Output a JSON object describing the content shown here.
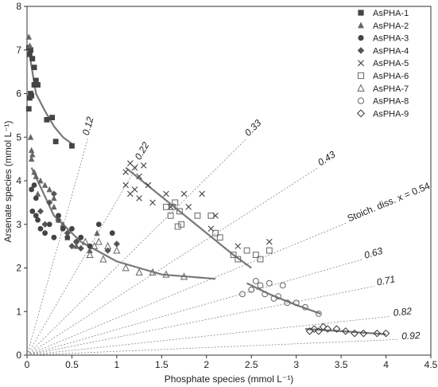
{
  "chart_data": {
    "type": "scatter",
    "xlabel": "Phosphate species (mmol L⁻¹)",
    "ylabel": "Arsenate species (mmol L⁻¹)",
    "xlim": [
      0,
      4.5
    ],
    "ylim": [
      0,
      8
    ],
    "xticks": [
      "0",
      "0.5",
      "1",
      "1.5",
      "2",
      "2.5",
      "3",
      "3.5",
      "4",
      "4.5"
    ],
    "yticks": [
      "0",
      "1",
      "2",
      "3",
      "4",
      "5",
      "6",
      "7",
      "8"
    ],
    "grid": false,
    "legend_position": "top-right",
    "reference_lines": {
      "labels": [
        "0.12",
        "0.22",
        "0.33",
        "0.43",
        "Stoich. diss. x = 0.54",
        "0.63",
        "0.71",
        "0.82",
        "0.92"
      ],
      "x_fraction": [
        0.12,
        0.22,
        0.33,
        0.43,
        0.54,
        0.63,
        0.71,
        0.82,
        0.92
      ]
    },
    "series": [
      {
        "name": "AsPHA-1",
        "marker": "square-filled",
        "x": [
          0.02,
          0.03,
          0.05,
          0.02,
          0.04,
          0.06,
          0.08,
          0.1,
          0.12,
          0.22,
          0.28,
          0.32,
          0.5,
          0.04,
          0.08,
          0.03
        ],
        "y": [
          5.65,
          5.9,
          5.95,
          7.05,
          7.0,
          6.8,
          6.6,
          6.3,
          6.2,
          5.4,
          5.45,
          4.9,
          4.8,
          6.0,
          6.2,
          6.9
        ],
        "trend": {
          "x": [
            0.02,
            0.1,
            0.2,
            0.3,
            0.4,
            0.5
          ],
          "y": [
            7.0,
            6.0,
            5.6,
            5.25,
            5.0,
            4.85
          ]
        }
      },
      {
        "name": "AsPHA-2",
        "marker": "triangle-filled",
        "x": [
          0.02,
          0.03,
          0.04,
          0.05,
          0.06,
          0.1,
          0.15,
          0.2,
          0.25,
          0.3,
          0.3,
          0.35,
          0.4,
          0.45,
          0.55,
          0.7,
          0.78,
          0.05,
          0.08,
          0.12
        ],
        "y": [
          7.3,
          7.1,
          5.0,
          4.7,
          4.6,
          4.1,
          4.0,
          3.9,
          3.8,
          3.6,
          3.4,
          3.1,
          3.0,
          2.7,
          2.5,
          2.4,
          2.8,
          4.5,
          4.2,
          3.7
        ]
      },
      {
        "name": "AsPHA-3",
        "marker": "circle-filled",
        "x": [
          0.05,
          0.06,
          0.08,
          0.1,
          0.1,
          0.12,
          0.15,
          0.2,
          0.25,
          0.3,
          0.35,
          0.4,
          0.45,
          0.5,
          0.55,
          0.6,
          0.7,
          0.8,
          0.95
        ],
        "y": [
          3.8,
          3.3,
          3.9,
          3.6,
          3.2,
          3.1,
          2.9,
          2.8,
          3.0,
          2.7,
          3.2,
          2.9,
          2.7,
          2.9,
          2.6,
          2.7,
          2.5,
          3.0,
          2.8
        ]
      },
      {
        "name": "AsPHA-4",
        "marker": "diamond-filled",
        "x": [
          0.15,
          0.2,
          0.25,
          0.3,
          0.35,
          0.45,
          0.5,
          0.55,
          0.6,
          0.9,
          1.0
        ],
        "y": [
          3.3,
          3.0,
          3.5,
          3.7,
          3.1,
          2.8,
          2.5,
          2.6,
          2.45,
          2.4,
          2.55
        ]
      },
      {
        "name": "AsPHA-5",
        "marker": "x",
        "x": [
          1.1,
          1.15,
          1.2,
          1.25,
          1.3,
          1.35,
          1.1,
          1.2,
          1.15,
          1.25,
          1.4,
          1.55,
          1.6,
          1.75,
          1.8,
          1.95,
          2.05,
          2.1,
          2.35,
          2.7
        ],
        "y": [
          4.2,
          4.4,
          4.3,
          4.1,
          4.35,
          3.9,
          3.9,
          3.8,
          3.7,
          3.6,
          3.5,
          3.7,
          3.4,
          3.7,
          3.4,
          3.7,
          2.9,
          3.2,
          2.5,
          2.6
        ],
        "trend": {
          "x": [
            1.1,
            1.4,
            1.7,
            2.0,
            2.3,
            2.5
          ],
          "y": [
            4.3,
            3.8,
            3.3,
            2.8,
            2.3,
            2.0
          ]
        }
      },
      {
        "name": "AsPHA-6",
        "marker": "square-open",
        "x": [
          1.55,
          1.6,
          1.62,
          1.65,
          1.7,
          1.68,
          1.72,
          1.9,
          2.05,
          2.1,
          2.15,
          2.3,
          2.35,
          2.45,
          2.55,
          2.6,
          2.7
        ],
        "y": [
          3.4,
          3.2,
          3.4,
          3.5,
          3.3,
          2.95,
          3.0,
          3.2,
          3.2,
          2.8,
          2.7,
          2.3,
          2.2,
          2.4,
          2.3,
          2.2,
          2.4
        ]
      },
      {
        "name": "AsPHA-7",
        "marker": "triangle-open",
        "x": [
          0.65,
          0.7,
          0.75,
          0.8,
          0.85,
          0.9,
          1.0,
          1.1,
          1.25,
          1.4,
          1.55,
          1.75
        ],
        "y": [
          2.6,
          2.3,
          2.5,
          2.6,
          2.2,
          2.5,
          2.4,
          2.0,
          1.9,
          1.9,
          1.85,
          1.8
        ],
        "trend": {
          "x": [
            0.05,
            0.3,
            0.6,
            1.0,
            1.5,
            2.1
          ],
          "y": [
            4.3,
            3.2,
            2.6,
            2.15,
            1.85,
            1.75
          ]
        }
      },
      {
        "name": "AsPHA-8",
        "marker": "circle-open",
        "x": [
          2.4,
          2.5,
          2.55,
          2.6,
          2.65,
          2.7,
          2.75,
          2.8,
          2.85,
          2.9,
          3.0,
          3.1,
          3.25
        ],
        "y": [
          1.4,
          1.5,
          1.7,
          1.6,
          1.4,
          1.65,
          1.3,
          1.35,
          1.6,
          1.2,
          1.2,
          1.1,
          0.95
        ],
        "trend": {
          "x": [
            2.45,
            2.7,
            3.0,
            3.27
          ],
          "y": [
            1.65,
            1.4,
            1.15,
            0.95
          ]
        }
      },
      {
        "name": "AsPHA-9",
        "marker": "diamond-open",
        "x": [
          3.15,
          3.2,
          3.25,
          3.3,
          3.35,
          3.45,
          3.55,
          3.65,
          3.75,
          3.9,
          4.0
        ],
        "y": [
          0.55,
          0.6,
          0.55,
          0.65,
          0.6,
          0.6,
          0.55,
          0.5,
          0.5,
          0.5,
          0.5
        ],
        "trend": {
          "x": [
            3.1,
            3.5,
            4.0
          ],
          "y": [
            0.6,
            0.55,
            0.48
          ]
        }
      }
    ]
  }
}
